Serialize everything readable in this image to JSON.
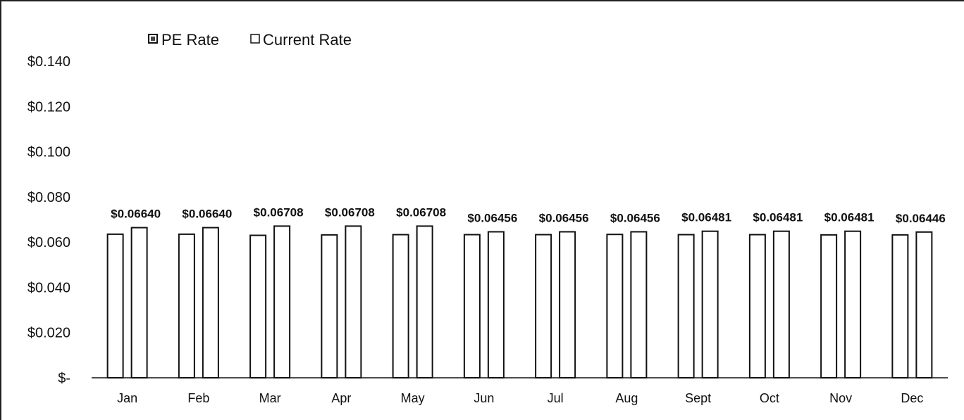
{
  "chart_data": {
    "type": "bar",
    "title": "",
    "xlabel": "",
    "ylabel": "",
    "categories": [
      "Jan",
      "Feb",
      "Mar",
      "Apr",
      "May",
      "Jun",
      "Jul",
      "Aug",
      "Sept",
      "Oct",
      "Nov",
      "Dec"
    ],
    "series": [
      {
        "name": "PE Rate",
        "values": [
          0.0635,
          0.0635,
          0.063,
          0.0632,
          0.0633,
          0.0633,
          0.0633,
          0.0634,
          0.0633,
          0.0633,
          0.0632,
          0.0632
        ],
        "color": "#ffffff"
      },
      {
        "name": "Current Rate",
        "values": [
          0.0664,
          0.0664,
          0.06708,
          0.06708,
          0.06708,
          0.06456,
          0.06456,
          0.06456,
          0.06481,
          0.06481,
          0.06481,
          0.06446
        ],
        "color": "#ffffff"
      }
    ],
    "data_labels": [
      "$0.06640",
      "$0.06640",
      "$0.06708",
      "$0.06708",
      "$0.06708",
      "$0.06456",
      "$0.06456",
      "$0.06456",
      "$0.06481",
      "$0.06481",
      "$0.06481",
      "$0.06446"
    ],
    "y_ticks": [
      {
        "value": 0,
        "label": "$-"
      },
      {
        "value": 0.02,
        "label": "$0.020"
      },
      {
        "value": 0.04,
        "label": "$0.040"
      },
      {
        "value": 0.06,
        "label": "$0.060"
      },
      {
        "value": 0.08,
        "label": "$0.080"
      },
      {
        "value": 0.1,
        "label": "$0.100"
      },
      {
        "value": 0.12,
        "label": "$0.120"
      },
      {
        "value": 0.14,
        "label": "$0.140"
      }
    ],
    "ylim": [
      0,
      0.14
    ],
    "grid": false,
    "legend_position": "top-left"
  }
}
